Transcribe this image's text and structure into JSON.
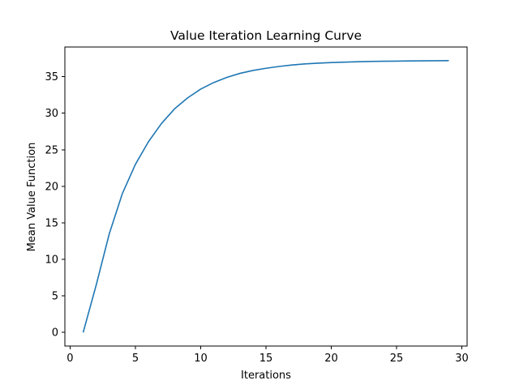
{
  "chart_data": {
    "type": "line",
    "title": "Value Iteration Learning Curve",
    "xlabel": "Iterations",
    "ylabel": "Mean Value Function",
    "xlim": [
      -0.4,
      30.4
    ],
    "ylim": [
      -1.86,
      39.06
    ],
    "xticks": [
      0,
      5,
      10,
      15,
      20,
      25,
      30
    ],
    "yticks": [
      0,
      5,
      10,
      15,
      20,
      25,
      30,
      35
    ],
    "grid": false,
    "legend": "none",
    "series": [
      {
        "color": "#1f77b4",
        "x": [
          1,
          2,
          3,
          4,
          5,
          6,
          7,
          8,
          9,
          10,
          11,
          12,
          13,
          14,
          15,
          16,
          17,
          18,
          19,
          20,
          21,
          22,
          23,
          24,
          25,
          26,
          27,
          28,
          29
        ],
        "y": [
          0,
          6.5,
          13.5,
          19.0,
          23.0,
          26.1,
          28.6,
          30.6,
          32.1,
          33.3,
          34.2,
          34.9,
          35.45,
          35.85,
          36.15,
          36.4,
          36.6,
          36.75,
          36.85,
          36.93,
          36.99,
          37.04,
          37.08,
          37.11,
          37.13,
          37.15,
          37.17,
          37.18,
          37.2
        ]
      }
    ]
  }
}
